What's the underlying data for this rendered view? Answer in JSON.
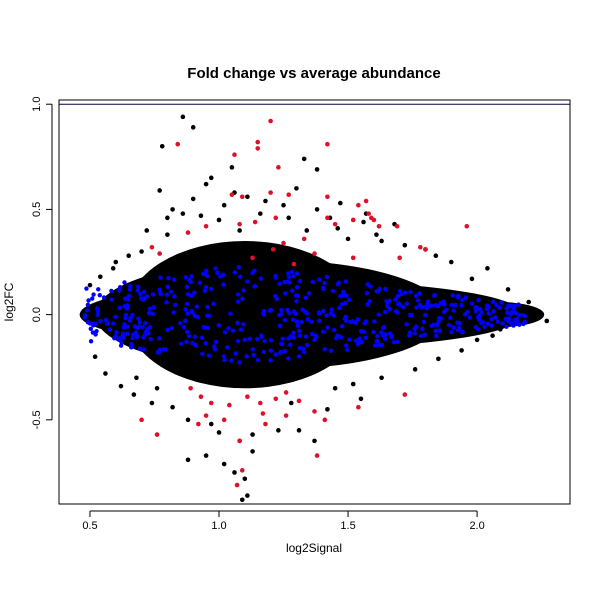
{
  "chart_data": {
    "type": "scatter",
    "title": "Fold change vs average abundance",
    "xlabel": "log2Signal",
    "ylabel": "log2FC",
    "xlim": [
      0.38,
      2.36
    ],
    "ylim": [
      -0.9,
      1.02
    ],
    "x_ticks": [
      0.5,
      1.0,
      1.5,
      2.0
    ],
    "x_tick_labels": [
      "0.5",
      "1.0",
      "1.5",
      "2.0"
    ],
    "y_ticks": [
      -0.5,
      0.0,
      0.5,
      1.0
    ],
    "y_tick_labels": [
      "-0.5",
      "0.0",
      "0.5",
      "1.0"
    ],
    "reference_lines": [
      {
        "orientation": "horizontal",
        "y": 1.0,
        "color": "#00004a"
      }
    ],
    "grid": false,
    "legend": "none",
    "colors": {
      "all": "#000000",
      "blue": "#0000ff",
      "red": "#e0102a"
    },
    "series": [
      {
        "color": "#000000",
        "points": [
          [
            0.86,
            0.94
          ],
          [
            0.9,
            0.89
          ],
          [
            0.78,
            0.8
          ],
          [
            1.05,
            0.7
          ],
          [
            0.95,
            0.62
          ],
          [
            0.97,
            0.65
          ],
          [
            1.38,
            0.69
          ],
          [
            1.3,
            0.6
          ],
          [
            1.33,
            0.74
          ],
          [
            1.06,
            0.58
          ],
          [
            1.11,
            0.56
          ],
          [
            0.77,
            0.59
          ],
          [
            0.9,
            0.55
          ],
          [
            1.02,
            0.52
          ],
          [
            1.18,
            0.54
          ],
          [
            1.25,
            0.52
          ],
          [
            1.47,
            0.53
          ],
          [
            1.57,
            0.48
          ],
          [
            1.68,
            0.43
          ],
          [
            0.82,
            0.5
          ],
          [
            0.86,
            0.48
          ],
          [
            0.93,
            0.47
          ],
          [
            1.0,
            0.45
          ],
          [
            1.43,
            0.46
          ],
          [
            1.56,
            0.44
          ],
          [
            1.38,
            0.5
          ],
          [
            0.72,
            0.4
          ],
          [
            0.8,
            0.38
          ],
          [
            1.08,
            0.4
          ],
          [
            1.34,
            0.4
          ],
          [
            1.5,
            0.36
          ],
          [
            1.63,
            0.35
          ],
          [
            1.8,
            0.31
          ],
          [
            1.9,
            0.25
          ],
          [
            2.04,
            0.22
          ],
          [
            2.12,
            0.12
          ],
          [
            2.2,
            0.06
          ],
          [
            2.27,
            -0.03
          ],
          [
            2.23,
            0.02
          ],
          [
            2.17,
            -0.02
          ],
          [
            2.09,
            -0.07
          ],
          [
            2.0,
            -0.12
          ],
          [
            1.94,
            -0.17
          ],
          [
            1.85,
            -0.21
          ],
          [
            1.76,
            -0.26
          ],
          [
            1.63,
            -0.3
          ],
          [
            1.52,
            -0.33
          ],
          [
            1.45,
            -0.35
          ],
          [
            0.67,
            -0.38
          ],
          [
            0.74,
            -0.42
          ],
          [
            0.82,
            -0.44
          ],
          [
            0.88,
            -0.5
          ],
          [
            0.97,
            -0.52
          ],
          [
            1.0,
            -0.56
          ],
          [
            1.13,
            -0.57
          ],
          [
            1.23,
            -0.55
          ],
          [
            1.31,
            -0.55
          ],
          [
            1.37,
            -0.6
          ],
          [
            1.08,
            -0.6
          ],
          [
            0.95,
            -0.67
          ],
          [
            0.88,
            -0.69
          ],
          [
            1.02,
            -0.71
          ],
          [
            1.06,
            -0.75
          ],
          [
            1.1,
            -0.78
          ],
          [
            1.13,
            -0.65
          ],
          [
            1.11,
            -0.86
          ],
          [
            1.09,
            -0.88
          ],
          [
            1.28,
            -0.42
          ],
          [
            1.42,
            -0.45
          ],
          [
            1.55,
            -0.4
          ],
          [
            0.62,
            -0.34
          ],
          [
            0.56,
            -0.28
          ],
          [
            0.52,
            -0.2
          ],
          [
            0.5,
            0.14
          ],
          [
            0.54,
            0.18
          ],
          [
            0.59,
            0.22
          ],
          [
            0.65,
            0.28
          ],
          [
            0.7,
            0.3
          ],
          [
            0.6,
            0.25
          ],
          [
            0.68,
            -0.3
          ],
          [
            0.76,
            -0.35
          ],
          [
            0.8,
            0.46
          ],
          [
            1.16,
            0.48
          ],
          [
            1.27,
            0.46
          ],
          [
            1.46,
            0.41
          ],
          [
            1.61,
            0.38
          ],
          [
            1.72,
            0.33
          ],
          [
            1.84,
            0.28
          ],
          [
            1.98,
            0.17
          ],
          [
            2.06,
            -0.1
          ]
        ]
      },
      {
        "color": "#e0102a",
        "points": [
          [
            1.2,
            0.92
          ],
          [
            1.15,
            0.82
          ],
          [
            1.42,
            0.81
          ],
          [
            0.84,
            0.81
          ],
          [
            1.15,
            0.79
          ],
          [
            1.06,
            0.76
          ],
          [
            1.23,
            0.7
          ],
          [
            1.05,
            0.57
          ],
          [
            1.09,
            0.56
          ],
          [
            1.42,
            0.56
          ],
          [
            1.2,
            0.58
          ],
          [
            1.27,
            0.57
          ],
          [
            1.57,
            0.54
          ],
          [
            1.54,
            0.52
          ],
          [
            1.52,
            0.45
          ],
          [
            1.42,
            0.46
          ],
          [
            1.45,
            0.43
          ],
          [
            1.58,
            0.48
          ],
          [
            1.59,
            0.46
          ],
          [
            1.6,
            0.45
          ],
          [
            1.62,
            0.42
          ],
          [
            1.69,
            0.42
          ],
          [
            1.96,
            0.42
          ],
          [
            1.22,
            0.46
          ],
          [
            1.14,
            0.44
          ],
          [
            1.08,
            0.43
          ],
          [
            0.95,
            0.42
          ],
          [
            0.88,
            0.39
          ],
          [
            0.74,
            0.32
          ],
          [
            0.77,
            0.29
          ],
          [
            1.25,
            0.34
          ],
          [
            1.33,
            0.36
          ],
          [
            1.37,
            0.29
          ],
          [
            1.52,
            0.27
          ],
          [
            1.7,
            0.27
          ],
          [
            1.78,
            0.32
          ],
          [
            1.8,
            0.31
          ],
          [
            1.21,
            0.31
          ],
          [
            1.29,
            0.24
          ],
          [
            1.13,
            0.27
          ],
          [
            0.89,
            -0.35
          ],
          [
            0.93,
            -0.39
          ],
          [
            0.97,
            -0.42
          ],
          [
            1.04,
            -0.43
          ],
          [
            1.11,
            -0.39
          ],
          [
            1.16,
            -0.42
          ],
          [
            1.22,
            -0.4
          ],
          [
            1.26,
            -0.37
          ],
          [
            1.31,
            -0.41
          ],
          [
            1.37,
            -0.46
          ],
          [
            1.17,
            -0.47
          ],
          [
            0.95,
            -0.48
          ],
          [
            0.92,
            -0.52
          ],
          [
            1.02,
            -0.5
          ],
          [
            0.76,
            -0.57
          ],
          [
            0.7,
            -0.5
          ],
          [
            1.08,
            -0.6
          ],
          [
            1.09,
            -0.74
          ],
          [
            1.07,
            -0.81
          ],
          [
            1.26,
            -0.48
          ],
          [
            1.41,
            -0.5
          ],
          [
            1.54,
            -0.44
          ],
          [
            1.72,
            -0.38
          ],
          [
            1.38,
            -0.67
          ],
          [
            1.18,
            -0.52
          ]
        ]
      }
    ]
  }
}
